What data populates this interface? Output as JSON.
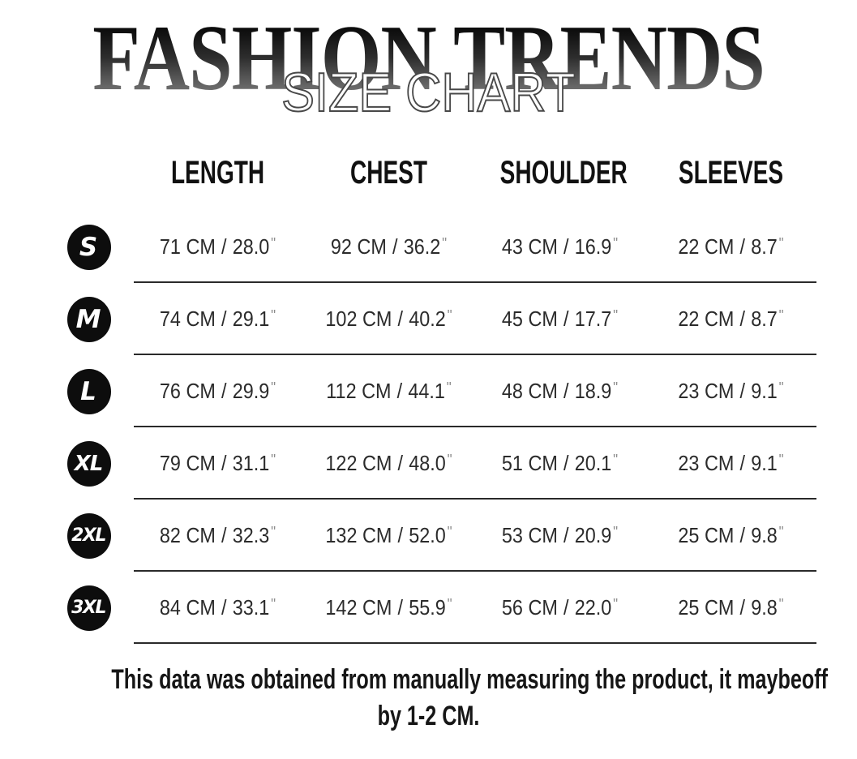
{
  "title": {
    "brand": "FASHION TRENDS",
    "overlay": "SIZE CHART"
  },
  "table": {
    "columns": [
      "LENGTH",
      "CHEST",
      "SHOULDER",
      "SLEEVES"
    ],
    "separator": "/",
    "inch_mark": "\"",
    "rows": [
      {
        "size": "S",
        "values": [
          {
            "cm": "71 CM",
            "in": "28.0"
          },
          {
            "cm": "92 CM",
            "in": "36.2"
          },
          {
            "cm": "43 CM",
            "in": "16.9"
          },
          {
            "cm": "22 CM",
            "in": "8.7"
          }
        ]
      },
      {
        "size": "M",
        "values": [
          {
            "cm": "74 CM",
            "in": "29.1"
          },
          {
            "cm": "102 CM",
            "in": "40.2"
          },
          {
            "cm": "45 CM",
            "in": "17.7"
          },
          {
            "cm": "22 CM",
            "in": "8.7"
          }
        ]
      },
      {
        "size": "L",
        "values": [
          {
            "cm": "76 CM",
            "in": "29.9"
          },
          {
            "cm": "112 CM",
            "in": "44.1"
          },
          {
            "cm": "48 CM",
            "in": "18.9"
          },
          {
            "cm": "23 CM",
            "in": "9.1"
          }
        ]
      },
      {
        "size": "XL",
        "values": [
          {
            "cm": "79 CM",
            "in": "31.1"
          },
          {
            "cm": "122 CM",
            "in": "48.0"
          },
          {
            "cm": "51 CM",
            "in": "20.1"
          },
          {
            "cm": "23 CM",
            "in": "9.1"
          }
        ]
      },
      {
        "size": "2XL",
        "values": [
          {
            "cm": "82 CM",
            "in": "32.3"
          },
          {
            "cm": "132 CM",
            "in": "52.0"
          },
          {
            "cm": "53 CM",
            "in": "20.9"
          },
          {
            "cm": "25 CM",
            "in": "9.8"
          }
        ]
      },
      {
        "size": "3XL",
        "values": [
          {
            "cm": "84 CM",
            "in": "33.1"
          },
          {
            "cm": "142 CM",
            "in": "55.9"
          },
          {
            "cm": "56 CM",
            "in": "22.0"
          },
          {
            "cm": "25 CM",
            "in": "9.8"
          }
        ]
      }
    ]
  },
  "footer": {
    "line1": "This data was obtained from manually measuring the product, it maybeoff",
    "line2": "by 1-2 CM."
  },
  "colors": {
    "badge_bg": "#0d0d0d",
    "body_text": "#2b2b2b",
    "divider": "#2a2a2a",
    "inch_mark": "#8c8c8c",
    "title_gradient_top": "#000000",
    "title_gradient_bottom": "#8d8d8d",
    "overlay_outline": "#484848",
    "background": "#ffffff"
  }
}
